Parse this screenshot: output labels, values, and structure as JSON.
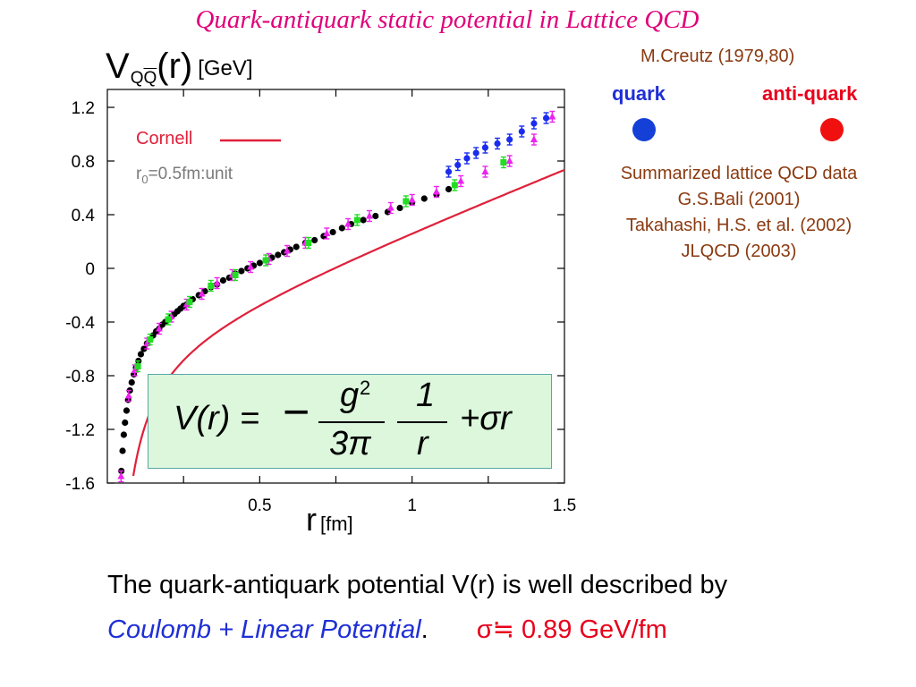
{
  "slide": {
    "title": "Quark-antiquark static potential in Lattice QCD",
    "credit": "M.Creutz (1979,80)",
    "quark_label": "quark",
    "antiquark_label": "anti-quark",
    "summary": [
      "Summarized lattice QCD data",
      "G.S.Bali (2001)",
      "Takahashi, H.S. et al. (2002)",
      "JLQCD (2003)"
    ],
    "formula": {
      "lhs": "V(r) =",
      "minus": "−",
      "g": "g",
      "exp": "2",
      "three_pi": "3π",
      "one": "1",
      "r": "r",
      "linear": "+σr"
    },
    "bottom_text_1": "The quark-antiquark potential V(r) is well described by",
    "bottom_coulomb": "Coulomb + Linear Potential",
    "bottom_period": ".",
    "bottom_sigma": "σ≒ 0.89 GeV/fm"
  },
  "colors": {
    "title": "#e0007a",
    "quark": "#1440d8",
    "antiquark": "#f01010",
    "cornell": "#e0203a",
    "citation": "#8a3a10",
    "formula_bg": "#dcf7dc"
  },
  "chart_data": {
    "type": "scatter",
    "ylabel_main": "V",
    "ylabel_sub": "QQ",
    "ylabel_arg": "(r)",
    "ylabel_unit": "[GeV]",
    "xlabel_main": "r",
    "xlabel_unit": "[fm]",
    "xlim": [
      0,
      1.5
    ],
    "ylim": [
      -1.6,
      1.3
    ],
    "x_ticks": [
      0.5,
      1,
      1.5
    ],
    "x_tick_labels": [
      "0.5",
      "1",
      "1.5"
    ],
    "y_ticks": [
      1.2,
      0.8,
      0.4,
      0,
      -0.4,
      -0.8,
      -1.2,
      -1.6
    ],
    "y_tick_labels": [
      "1.2",
      "0.8",
      "0.4",
      "0",
      "-0.4",
      "-0.8",
      "-1.2",
      "-1.6"
    ],
    "legend": {
      "cornell": "Cornell",
      "r0_pre": "r",
      "r0_sub": "0",
      "r0_post": "=0.5fm:unit"
    },
    "fit": {
      "name": "Cornell",
      "coulomb_coeff": 0.092,
      "sigma": 0.89,
      "offset": -0.54
    },
    "series": [
      {
        "color": "#000000",
        "marker": "circle",
        "x": [
          0.046,
          0.05,
          0.054,
          0.058,
          0.063,
          0.068,
          0.074,
          0.08,
          0.087,
          0.094,
          0.102,
          0.11,
          0.12,
          0.13,
          0.14,
          0.15,
          0.16,
          0.17,
          0.18,
          0.19,
          0.2,
          0.21,
          0.22,
          0.23,
          0.24,
          0.25,
          0.26,
          0.28,
          0.3,
          0.32,
          0.34,
          0.36,
          0.38,
          0.4,
          0.42,
          0.44,
          0.46,
          0.48,
          0.5,
          0.52,
          0.54,
          0.56,
          0.58,
          0.6,
          0.62,
          0.65,
          0.68,
          0.71,
          0.74,
          0.77,
          0.8,
          0.84,
          0.88,
          0.92,
          0.96,
          1.0,
          1.04,
          1.08,
          1.12
        ],
        "y": [
          -1.51,
          -1.36,
          -1.24,
          -1.15,
          -1.06,
          -0.98,
          -0.91,
          -0.85,
          -0.79,
          -0.74,
          -0.69,
          -0.64,
          -0.6,
          -0.56,
          -0.53,
          -0.5,
          -0.47,
          -0.45,
          -0.42,
          -0.4,
          -0.38,
          -0.36,
          -0.34,
          -0.32,
          -0.3,
          -0.28,
          -0.27,
          -0.23,
          -0.2,
          -0.17,
          -0.14,
          -0.12,
          -0.09,
          -0.07,
          -0.04,
          -0.02,
          0.0,
          0.02,
          0.04,
          0.06,
          0.08,
          0.1,
          0.12,
          0.14,
          0.16,
          0.19,
          0.21,
          0.24,
          0.27,
          0.3,
          0.33,
          0.36,
          0.39,
          0.42,
          0.45,
          0.49,
          0.52,
          0.55,
          0.59
        ]
      },
      {
        "color": "#ee22ee",
        "marker": "triangle",
        "x": [
          0.045,
          0.07,
          0.09,
          0.13,
          0.17,
          0.21,
          0.26,
          0.31,
          0.36,
          0.41,
          0.47,
          0.53,
          0.59,
          0.65,
          0.72,
          0.79,
          0.86,
          0.93,
          1.0,
          1.08,
          1.16,
          1.24,
          1.32,
          1.4,
          1.46
        ],
        "y": [
          -1.55,
          -0.95,
          -0.76,
          -0.56,
          -0.45,
          -0.36,
          -0.27,
          -0.19,
          -0.11,
          -0.05,
          0.01,
          0.07,
          0.13,
          0.19,
          0.26,
          0.33,
          0.39,
          0.45,
          0.51,
          0.57,
          0.65,
          0.72,
          0.8,
          0.96,
          1.13
        ]
      },
      {
        "color": "#22dd22",
        "marker": "square",
        "x": [
          0.1,
          0.14,
          0.2,
          0.27,
          0.34,
          0.42,
          0.52,
          0.66,
          0.82,
          0.98,
          1.14,
          1.3
        ],
        "y": [
          -0.73,
          -0.53,
          -0.38,
          -0.25,
          -0.13,
          -0.05,
          0.06,
          0.19,
          0.36,
          0.5,
          0.62,
          0.79
        ]
      },
      {
        "color": "#1a2cf0",
        "marker": "circle",
        "x": [
          1.12,
          1.15,
          1.18,
          1.21,
          1.24,
          1.28,
          1.32,
          1.36,
          1.4,
          1.44
        ],
        "y": [
          0.72,
          0.77,
          0.82,
          0.86,
          0.9,
          0.93,
          0.96,
          1.02,
          1.08,
          1.12
        ]
      }
    ]
  }
}
